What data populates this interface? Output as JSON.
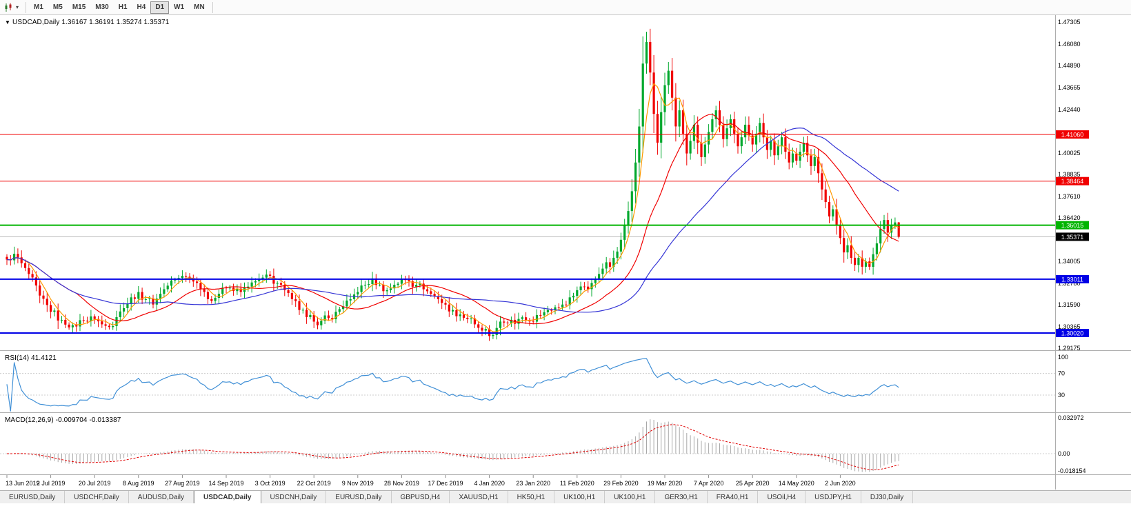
{
  "toolbar": {
    "timeframes": [
      "M1",
      "M5",
      "M15",
      "M30",
      "H1",
      "H4",
      "D1",
      "W1",
      "MN"
    ],
    "active_timeframe": "D1"
  },
  "main_chart": {
    "title": "USDCAD,Daily",
    "ohlc": "1.36167 1.36191 1.35274 1.35371"
  },
  "rsi_panel": {
    "label": "RSI(14) 41.4121",
    "color": "#3f8fd6",
    "axis_labels": [
      {
        "text": "100",
        "value": 100
      },
      {
        "text": "70",
        "value": 70
      },
      {
        "text": "30",
        "value": 30
      }
    ]
  },
  "macd_panel": {
    "label": "MACD(12,26,9) -0.009704 -0.013387",
    "hist_color": "#a8a8a8",
    "signal_color": "#e00000",
    "axis_labels": [
      {
        "text": "0.032972",
        "value": 0.032972
      },
      {
        "text": "0.00",
        "value": 0
      },
      {
        "text": "-0.018154",
        "value": -0.018154
      }
    ]
  },
  "chart_data": {
    "type": "candlestick",
    "symbol": "USDCAD",
    "timeframe": "Daily",
    "bars": 245,
    "x0": 10,
    "bar_spacing": 5.3,
    "ylim": [
      1.2906,
      1.4769
    ],
    "last_ohlc": {
      "open": 1.36167,
      "high": 1.36191,
      "low": 1.35274,
      "close": 1.35371
    },
    "bid": {
      "price": 1.35371,
      "label": "1.35371",
      "badge_color": "#000000",
      "line_color": "#b8b8b8"
    },
    "hlines": [
      {
        "price": 1.4106,
        "label": "1.41060",
        "color": "#f00000",
        "width": 1
      },
      {
        "price": 1.38464,
        "label": "1.38464",
        "color": "#f00000",
        "width": 1
      },
      {
        "price": 1.36015,
        "label": "1.36015",
        "color": "#00b400",
        "width": 2
      },
      {
        "price": 1.33011,
        "label": "1.33011",
        "color": "#0000e6",
        "width": 2
      },
      {
        "price": 1.3002,
        "label": "1.30020",
        "color": "#0000e6",
        "width": 2
      }
    ],
    "price_ticks": [
      1.47305,
      1.4608,
      1.4489,
      1.43665,
      1.4244,
      1.40025,
      1.38835,
      1.3761,
      1.3642,
      1.34005,
      1.3278,
      1.3159,
      1.30365,
      1.29175
    ],
    "colors": {
      "up": "#00a82d",
      "down": "#f00000"
    },
    "moving_averages": [
      {
        "period": 5,
        "color": "#ff9900"
      },
      {
        "period": 20,
        "color": "#f00000"
      },
      {
        "period": 45,
        "color": "#3535d6"
      }
    ],
    "rsi": {
      "period": 14,
      "current": 41.4121,
      "levels": [
        70,
        30
      ]
    },
    "macd": {
      "fast": 12,
      "slow": 26,
      "signal": 9,
      "current_main": -0.009704,
      "current_signal": -0.013387
    },
    "timeline": {
      "bar_interval": 12,
      "labels": [
        "13 Jun 2019",
        "2 Jul 2019",
        "20 Jul 2019",
        "8 Aug 2019",
        "27 Aug 2019",
        "14 Sep 2019",
        "3 Oct 2019",
        "22 Oct 2019",
        "9 Nov 2019",
        "28 Nov 2019",
        "17 Dec 2019",
        "4 Jan 2020",
        "23 Jan 2020",
        "11 Feb 2020",
        "29 Feb 2020",
        "19 Mar 2020",
        "7 Apr 2020",
        "25 Apr 2020",
        "14 May 2020",
        "2 Jun 2020"
      ]
    },
    "close_anchors": [
      [
        0,
        1.341
      ],
      [
        2,
        1.3442
      ],
      [
        4,
        1.339
      ],
      [
        6,
        1.333
      ],
      [
        9,
        1.321
      ],
      [
        12,
        1.312
      ],
      [
        15,
        1.3075
      ],
      [
        18,
        1.3045
      ],
      [
        21,
        1.307
      ],
      [
        24,
        1.308
      ],
      [
        26,
        1.305
      ],
      [
        28,
        1.3035
      ],
      [
        30,
        1.309
      ],
      [
        32,
        1.314
      ],
      [
        34,
        1.32
      ],
      [
        36,
        1.323
      ],
      [
        38,
        1.319
      ],
      [
        40,
        1.316
      ],
      [
        42,
        1.322
      ],
      [
        44,
        1.3265
      ],
      [
        46,
        1.33
      ],
      [
        48,
        1.332
      ],
      [
        50,
        1.33
      ],
      [
        52,
        1.328
      ],
      [
        54,
        1.323
      ],
      [
        56,
        1.318
      ],
      [
        58,
        1.322
      ],
      [
        60,
        1.325
      ],
      [
        62,
        1.3235
      ],
      [
        64,
        1.323
      ],
      [
        66,
        1.326
      ],
      [
        68,
        1.329
      ],
      [
        70,
        1.331
      ],
      [
        72,
        1.332
      ],
      [
        74,
        1.328
      ],
      [
        76,
        1.324
      ],
      [
        78,
        1.319
      ],
      [
        80,
        1.313
      ],
      [
        82,
        1.309
      ],
      [
        84,
        1.3065
      ],
      [
        86,
        1.307
      ],
      [
        88,
        1.3085
      ],
      [
        90,
        1.312
      ],
      [
        92,
        1.315
      ],
      [
        94,
        1.319
      ],
      [
        96,
        1.323
      ],
      [
        98,
        1.327
      ],
      [
        100,
        1.3305
      ],
      [
        102,
        1.327
      ],
      [
        104,
        1.324
      ],
      [
        106,
        1.327
      ],
      [
        108,
        1.33
      ],
      [
        110,
        1.329
      ],
      [
        112,
        1.327
      ],
      [
        114,
        1.3245
      ],
      [
        116,
        1.322
      ],
      [
        118,
        1.319
      ],
      [
        120,
        1.316
      ],
      [
        122,
        1.313
      ],
      [
        124,
        1.3105
      ],
      [
        126,
        1.308
      ],
      [
        128,
        1.305
      ],
      [
        130,
        1.3015
      ],
      [
        132,
        1.2985
      ],
      [
        134,
        1.303
      ],
      [
        136,
        1.306
      ],
      [
        138,
        1.3075
      ],
      [
        140,
        1.308
      ],
      [
        142,
        1.307
      ],
      [
        144,
        1.3065
      ],
      [
        146,
        1.31
      ],
      [
        148,
        1.313
      ],
      [
        150,
        1.3145
      ],
      [
        152,
        1.316
      ],
      [
        154,
        1.32
      ],
      [
        156,
        1.324
      ],
      [
        158,
        1.326
      ],
      [
        160,
        1.328
      ],
      [
        161,
        1.33
      ],
      [
        162,
        1.333
      ],
      [
        163,
        1.336
      ],
      [
        164,
        1.3395
      ],
      [
        165,
        1.337
      ],
      [
        166,
        1.342
      ],
      [
        167,
        1.3455
      ],
      [
        168,
        1.352
      ],
      [
        169,
        1.36
      ],
      [
        170,
        1.368
      ],
      [
        171,
        1.379
      ],
      [
        172,
        1.395
      ],
      [
        173,
        1.415
      ],
      [
        174,
        1.45
      ],
      [
        175,
        1.462
      ],
      [
        176,
        1.445
      ],
      [
        177,
        1.422
      ],
      [
        178,
        1.406
      ],
      [
        179,
        1.423
      ],
      [
        180,
        1.438
      ],
      [
        181,
        1.446
      ],
      [
        182,
        1.431
      ],
      [
        183,
        1.415
      ],
      [
        184,
        1.424
      ],
      [
        185,
        1.411
      ],
      [
        186,
        1.4
      ],
      [
        187,
        1.407
      ],
      [
        188,
        1.416
      ],
      [
        189,
        1.406
      ],
      [
        190,
        1.398
      ],
      [
        191,
        1.405
      ],
      [
        192,
        1.412
      ],
      [
        193,
        1.419
      ],
      [
        194,
        1.424
      ],
      [
        195,
        1.416
      ],
      [
        196,
        1.408
      ],
      [
        197,
        1.414
      ],
      [
        198,
        1.419
      ],
      [
        199,
        1.411
      ],
      [
        200,
        1.404
      ],
      [
        201,
        1.409
      ],
      [
        202,
        1.416
      ],
      [
        203,
        1.41
      ],
      [
        204,
        1.405
      ],
      [
        205,
        1.411
      ],
      [
        206,
        1.417
      ],
      [
        207,
        1.409
      ],
      [
        208,
        1.402
      ],
      [
        209,
        1.407
      ],
      [
        210,
        1.399
      ],
      [
        211,
        1.404
      ],
      [
        212,
        1.409
      ],
      [
        213,
        1.401
      ],
      [
        214,
        1.395
      ],
      [
        215,
        1.4
      ],
      [
        216,
        1.396
      ],
      [
        217,
        1.401
      ],
      [
        218,
        1.406
      ],
      [
        219,
        1.399
      ],
      [
        220,
        1.393
      ],
      [
        221,
        1.398
      ],
      [
        222,
        1.389
      ],
      [
        223,
        1.38
      ],
      [
        224,
        1.373
      ],
      [
        225,
        1.365
      ],
      [
        226,
        1.369
      ],
      [
        227,
        1.36
      ],
      [
        228,
        1.353
      ],
      [
        229,
        1.345
      ],
      [
        230,
        1.349
      ],
      [
        231,
        1.342
      ],
      [
        232,
        1.338
      ],
      [
        233,
        1.342
      ],
      [
        234,
        1.337
      ],
      [
        235,
        1.34
      ],
      [
        236,
        1.337
      ],
      [
        237,
        1.344
      ],
      [
        238,
        1.35
      ],
      [
        239,
        1.358
      ],
      [
        240,
        1.363
      ],
      [
        241,
        1.356
      ],
      [
        242,
        1.36
      ],
      [
        243,
        1.36167
      ],
      [
        244,
        1.35371
      ]
    ]
  },
  "tabs": {
    "items": [
      "EURUSD,Daily",
      "USDCHF,Daily",
      "AUDUSD,Daily",
      "USDCAD,Daily",
      "USDCNH,Daily",
      "EURUSD,Daily",
      "GBPUSD,H4",
      "XAUUSD,H1",
      "HK50,H1",
      "UK100,H1",
      "UK100,H1",
      "GER30,H1",
      "FRA40,H1",
      "USOil,H4",
      "USDJPY,H1",
      "DJ30,Daily"
    ],
    "active_index": 3
  }
}
